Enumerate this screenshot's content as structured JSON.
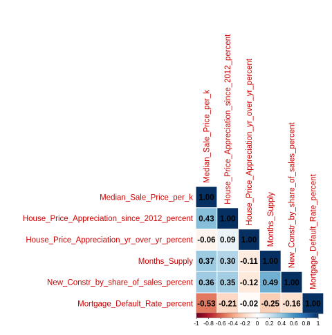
{
  "chart_data": {
    "type": "heatmap",
    "subtype": "lower-triangle correlation matrix",
    "title": "",
    "variables": [
      "Median_Sale_Price_per_k",
      "House_Price_Appreciation_since_2012_percent",
      "House_Price_Appreciation_yr_over_yr_percent",
      "Months_Supply",
      "New_Constr_by_share_of_sales_percent",
      "Mortgage_Default_Rate_percent"
    ],
    "matrix": [
      [
        1.0
      ],
      [
        0.43,
        1.0
      ],
      [
        -0.06,
        0.09,
        1.0
      ],
      [
        0.37,
        0.3,
        -0.11,
        1.0
      ],
      [
        0.36,
        0.35,
        -0.12,
        0.49,
        1.0
      ],
      [
        -0.53,
        -0.21,
        -0.02,
        -0.25,
        -0.16,
        1.0
      ]
    ],
    "value_labels": [
      [
        "1.00"
      ],
      [
        "0.43",
        "1.00"
      ],
      [
        "-0.06",
        "0.09",
        "1.00"
      ],
      [
        "0.37",
        "0.30",
        "-0.11",
        "1.00"
      ],
      [
        "0.36",
        "0.35",
        "-0.12",
        "0.49",
        "1.00"
      ],
      [
        "-0.53",
        "-0.21",
        "-0.02",
        "-0.25",
        "-0.16",
        "1.00"
      ]
    ],
    "color_scale": {
      "range": [
        -1,
        1
      ],
      "ticks": [
        "-1",
        "-0.8",
        "-0.6",
        "-0.4",
        "-0.2",
        "0",
        "0.2",
        "0.4",
        "0.6",
        "0.8",
        "1"
      ],
      "stops": [
        {
          "v": -1.0,
          "color": "#67001f"
        },
        {
          "v": -0.8,
          "color": "#b2182b"
        },
        {
          "v": -0.6,
          "color": "#d6604d"
        },
        {
          "v": -0.4,
          "color": "#f4a582"
        },
        {
          "v": -0.2,
          "color": "#fddbc7"
        },
        {
          "v": 0.0,
          "color": "#ffffff"
        },
        {
          "v": 0.2,
          "color": "#d1e5f0"
        },
        {
          "v": 0.4,
          "color": "#92c5de"
        },
        {
          "v": 0.6,
          "color": "#4393c3"
        },
        {
          "v": 0.8,
          "color": "#2166ac"
        },
        {
          "v": 1.0,
          "color": "#053061"
        }
      ]
    },
    "legend_position": "bottom",
    "label_color": "#cc0000",
    "cell_border_color": "#ffffff",
    "grid": false
  }
}
